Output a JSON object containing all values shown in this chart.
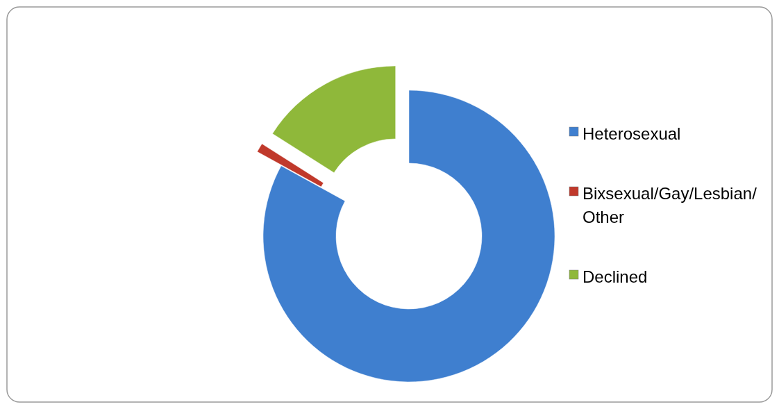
{
  "chart_data": {
    "type": "donut",
    "categories": [
      "Heterosexual",
      "Bixsexual/Gay/Lesbian/Other",
      "Declined"
    ],
    "values": [
      83,
      1,
      16
    ],
    "colors": [
      "#3f7fcf",
      "#c0392b",
      "#8fb83a"
    ],
    "legend": "right"
  }
}
